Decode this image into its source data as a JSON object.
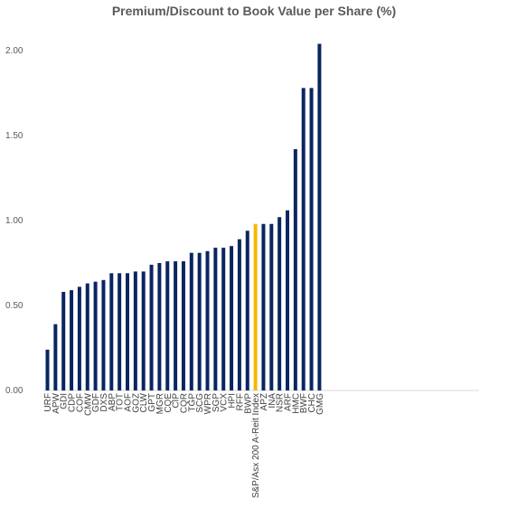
{
  "chart_data": {
    "type": "bar",
    "title": "Premium/Discount to Book Value per Share (%)",
    "xlabel": "",
    "ylabel": "",
    "ylim": [
      0,
      2.0
    ],
    "yticks": [
      "0.00",
      "0.50",
      "1.00",
      "1.50",
      "2.00"
    ],
    "grid": false,
    "legend": "none",
    "bar_color": "#0b2560",
    "highlight_color": "#f5b800",
    "highlight_category": "S&P/Asx 200 A-Reit Index",
    "categories": [
      "URF",
      "APW",
      "GDI",
      "CDP",
      "COF",
      "CMW",
      "GDF",
      "DXS",
      "ABP",
      "TOT",
      "AOF",
      "GOZ",
      "CLW",
      "GPT",
      "MGR",
      "CQE",
      "CIP",
      "CQR",
      "TGP",
      "SCG",
      "WPR",
      "SGP",
      "VCX",
      "HPI",
      "RFF",
      "BWP",
      "S&P/Asx 200 A-Reit Index",
      "APZ",
      "INA",
      "NSR",
      "ARF",
      "HMC",
      "BWF",
      "CHC",
      "GMG"
    ],
    "values": [
      0.24,
      0.39,
      0.58,
      0.59,
      0.61,
      0.63,
      0.64,
      0.65,
      0.69,
      0.69,
      0.69,
      0.7,
      0.7,
      0.74,
      0.75,
      0.76,
      0.76,
      0.76,
      0.81,
      0.81,
      0.82,
      0.84,
      0.84,
      0.85,
      0.89,
      0.94,
      0.98,
      0.98,
      0.98,
      1.02,
      1.06,
      1.42,
      1.78,
      1.78,
      2.04
    ]
  }
}
